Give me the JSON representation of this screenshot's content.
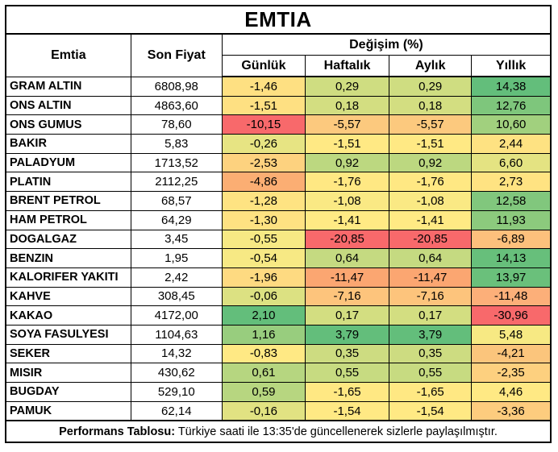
{
  "title": "EMTIA",
  "header": {
    "commodity": "Emtia",
    "last_price": "Son Fiyat",
    "change_group": "Değişim (%)",
    "periods": [
      "Günlük",
      "Haftalık",
      "Aylık",
      "Yıllık"
    ]
  },
  "rows": [
    {
      "name": "GRAM ALTIN",
      "price": "6808,98",
      "changes": [
        {
          "v": "-1,46",
          "bg": "#FEE082"
        },
        {
          "v": "0,29",
          "bg": "#CFDD81"
        },
        {
          "v": "0,29",
          "bg": "#CFDD81"
        },
        {
          "v": "14,38",
          "bg": "#63BE7B"
        }
      ]
    },
    {
      "name": "ONS ALTIN",
      "price": "4863,60",
      "changes": [
        {
          "v": "-1,51",
          "bg": "#FEE082"
        },
        {
          "v": "0,18",
          "bg": "#D3DE81"
        },
        {
          "v": "0,18",
          "bg": "#D3DE81"
        },
        {
          "v": "12,76",
          "bg": "#7EC67C"
        }
      ]
    },
    {
      "name": "ONS GUMUS",
      "price": "78,60",
      "changes": [
        {
          "v": "-10,15",
          "bg": "#F8696B"
        },
        {
          "v": "-5,57",
          "bg": "#FCC97E"
        },
        {
          "v": "-5,57",
          "bg": "#FCC97E"
        },
        {
          "v": "10,60",
          "bg": "#A1D07E"
        }
      ]
    },
    {
      "name": "BAKIR",
      "price": "5,83",
      "changes": [
        {
          "v": "-0,26",
          "bg": "#E7E483"
        },
        {
          "v": "-1,51",
          "bg": "#FFE984"
        },
        {
          "v": "-1,51",
          "bg": "#FFE984"
        },
        {
          "v": "2,44",
          "bg": "#FEE282"
        }
      ]
    },
    {
      "name": "PALADYUM",
      "price": "1713,52",
      "changes": [
        {
          "v": "-2,53",
          "bg": "#FDD27F"
        },
        {
          "v": "0,92",
          "bg": "#BCD880"
        },
        {
          "v": "0,92",
          "bg": "#BCD880"
        },
        {
          "v": "6,60",
          "bg": "#E4E382"
        }
      ]
    },
    {
      "name": "PLATIN",
      "price": "2112,25",
      "changes": [
        {
          "v": "-4,86",
          "bg": "#FBAE73"
        },
        {
          "v": "-1,76",
          "bg": "#FFE883"
        },
        {
          "v": "-1,76",
          "bg": "#FFE883"
        },
        {
          "v": "2,73",
          "bg": "#FFE382"
        }
      ]
    },
    {
      "name": "BRENT PETROL",
      "price": "68,57",
      "changes": [
        {
          "v": "-1,28",
          "bg": "#FEE382"
        },
        {
          "v": "-1,08",
          "bg": "#FAE984"
        },
        {
          "v": "-1,08",
          "bg": "#FAE984"
        },
        {
          "v": "12,58",
          "bg": "#81C77D"
        }
      ]
    },
    {
      "name": "HAM PETROL",
      "price": "64,29",
      "changes": [
        {
          "v": "-1,30",
          "bg": "#FEE282"
        },
        {
          "v": "-1,41",
          "bg": "#FFEA84"
        },
        {
          "v": "-1,41",
          "bg": "#FFEA84"
        },
        {
          "v": "11,93",
          "bg": "#8CCA7D"
        }
      ]
    },
    {
      "name": "DOGALGAZ",
      "price": "3,45",
      "changes": [
        {
          "v": "-0,55",
          "bg": "#F7E984"
        },
        {
          "v": "-20,85",
          "bg": "#F8696B"
        },
        {
          "v": "-20,85",
          "bg": "#F8696B"
        },
        {
          "v": "-6,89",
          "bg": "#FDC07C"
        }
      ]
    },
    {
      "name": "BENZIN",
      "price": "1,95",
      "changes": [
        {
          "v": "-0,54",
          "bg": "#F7E984"
        },
        {
          "v": "0,64",
          "bg": "#C5DA81"
        },
        {
          "v": "0,64",
          "bg": "#C5DA81"
        },
        {
          "v": "14,13",
          "bg": "#67BF7B"
        }
      ]
    },
    {
      "name": "KALORIFER YAKITI",
      "price": "2,42",
      "changes": [
        {
          "v": "-1,96",
          "bg": "#FEDA81"
        },
        {
          "v": "-11,47",
          "bg": "#FBA671"
        },
        {
          "v": "-11,47",
          "bg": "#FBA671"
        },
        {
          "v": "13,97",
          "bg": "#6AC07B"
        }
      ]
    },
    {
      "name": "KAHVE",
      "price": "308,45",
      "changes": [
        {
          "v": "-0,06",
          "bg": "#DCE182"
        },
        {
          "v": "-7,16",
          "bg": "#FDC47C"
        },
        {
          "v": "-7,16",
          "bg": "#FDC47C"
        },
        {
          "v": "-11,48",
          "bg": "#FCAF79"
        }
      ]
    },
    {
      "name": "KAKAO",
      "price": "4172,00",
      "changes": [
        {
          "v": "2,10",
          "bg": "#63BE7B"
        },
        {
          "v": "0,17",
          "bg": "#D3DE81"
        },
        {
          "v": "0,17",
          "bg": "#D3DE81"
        },
        {
          "v": "-30,96",
          "bg": "#F8696B"
        }
      ]
    },
    {
      "name": "SOYA FASULYESI",
      "price": "1104,63",
      "changes": [
        {
          "v": "1,16",
          "bg": "#98CD7E"
        },
        {
          "v": "3,79",
          "bg": "#63BE7B"
        },
        {
          "v": "3,79",
          "bg": "#63BE7B"
        },
        {
          "v": "5,48",
          "bg": "#F7E983"
        }
      ]
    },
    {
      "name": "SEKER",
      "price": "14,32",
      "changes": [
        {
          "v": "-0,83",
          "bg": "#FFE984"
        },
        {
          "v": "0,35",
          "bg": "#CDDC81"
        },
        {
          "v": "0,35",
          "bg": "#CDDC81"
        },
        {
          "v": "-4,21",
          "bg": "#FBC57C"
        }
      ]
    },
    {
      "name": "MISIR",
      "price": "430,62",
      "changes": [
        {
          "v": "0,61",
          "bg": "#B6D680"
        },
        {
          "v": "0,55",
          "bg": "#C7DB81"
        },
        {
          "v": "0,55",
          "bg": "#C7DB81"
        },
        {
          "v": "-2,35",
          "bg": "#FDD07F"
        }
      ]
    },
    {
      "name": "BUGDAY",
      "price": "529,10",
      "changes": [
        {
          "v": "0,59",
          "bg": "#B7D680"
        },
        {
          "v": "-1,65",
          "bg": "#FFE883"
        },
        {
          "v": "-1,65",
          "bg": "#FFE883"
        },
        {
          "v": "4,46",
          "bg": "#FFE984"
        }
      ]
    },
    {
      "name": "PAMUK",
      "price": "62,14",
      "changes": [
        {
          "v": "-0,16",
          "bg": "#E1E282"
        },
        {
          "v": "-1,54",
          "bg": "#FFE984"
        },
        {
          "v": "-1,54",
          "bg": "#FFE984"
        },
        {
          "v": "-3,36",
          "bg": "#FDCC7E"
        }
      ]
    }
  ],
  "footer": {
    "label": "Performans Tablosu:",
    "text": " Türkiye saati ile 13:35'de güncellenerek sizlerle paylaşılmıştır."
  },
  "colors": {
    "scale_min": "#F8696B",
    "scale_mid": "#FFEB84",
    "scale_max": "#63BE7B",
    "border": "#000000",
    "background": "#FFFFFF"
  },
  "chart_data": {
    "type": "table",
    "title": "EMTIA",
    "columns": [
      "Emtia",
      "Son Fiyat",
      "Günlük",
      "Haftalık",
      "Aylık",
      "Yıllık"
    ],
    "rows": [
      [
        "GRAM ALTIN",
        6808.98,
        -1.46,
        0.29,
        0.29,
        14.38
      ],
      [
        "ONS ALTIN",
        4863.6,
        -1.51,
        0.18,
        0.18,
        12.76
      ],
      [
        "ONS GUMUS",
        78.6,
        -10.15,
        -5.57,
        -5.57,
        10.6
      ],
      [
        "BAKIR",
        5.83,
        -0.26,
        -1.51,
        -1.51,
        2.44
      ],
      [
        "PALADYUM",
        1713.52,
        -2.53,
        0.92,
        0.92,
        6.6
      ],
      [
        "PLATIN",
        2112.25,
        -4.86,
        -1.76,
        -1.76,
        2.73
      ],
      [
        "BRENT PETROL",
        68.57,
        -1.28,
        -1.08,
        -1.08,
        12.58
      ],
      [
        "HAM PETROL",
        64.29,
        -1.3,
        -1.41,
        -1.41,
        11.93
      ],
      [
        "DOGALGAZ",
        3.45,
        -0.55,
        -20.85,
        -20.85,
        -6.89
      ],
      [
        "BENZIN",
        1.95,
        -0.54,
        0.64,
        0.64,
        14.13
      ],
      [
        "KALORIFER YAKITI",
        2.42,
        -1.96,
        -11.47,
        -11.47,
        13.97
      ],
      [
        "KAHVE",
        308.45,
        -0.06,
        -7.16,
        -7.16,
        -11.48
      ],
      [
        "KAKAO",
        4172.0,
        2.1,
        0.17,
        0.17,
        -30.96
      ],
      [
        "SOYA FASULYESI",
        1104.63,
        1.16,
        3.79,
        3.79,
        5.48
      ],
      [
        "SEKER",
        14.32,
        -0.83,
        0.35,
        0.35,
        -4.21
      ],
      [
        "MISIR",
        430.62,
        0.61,
        0.55,
        0.55,
        -2.35
      ],
      [
        "BUGDAY",
        529.1,
        0.59,
        -1.65,
        -1.65,
        4.46
      ],
      [
        "PAMUK",
        62.14,
        -0.16,
        -1.54,
        -1.54,
        -3.36
      ]
    ],
    "notes": "Change columns use per-column 3-color scale: min=#F8696B, 50th percentile=#FFEB84, max=#63BE7B; Haftalık and Aylık values are identical in every row"
  }
}
